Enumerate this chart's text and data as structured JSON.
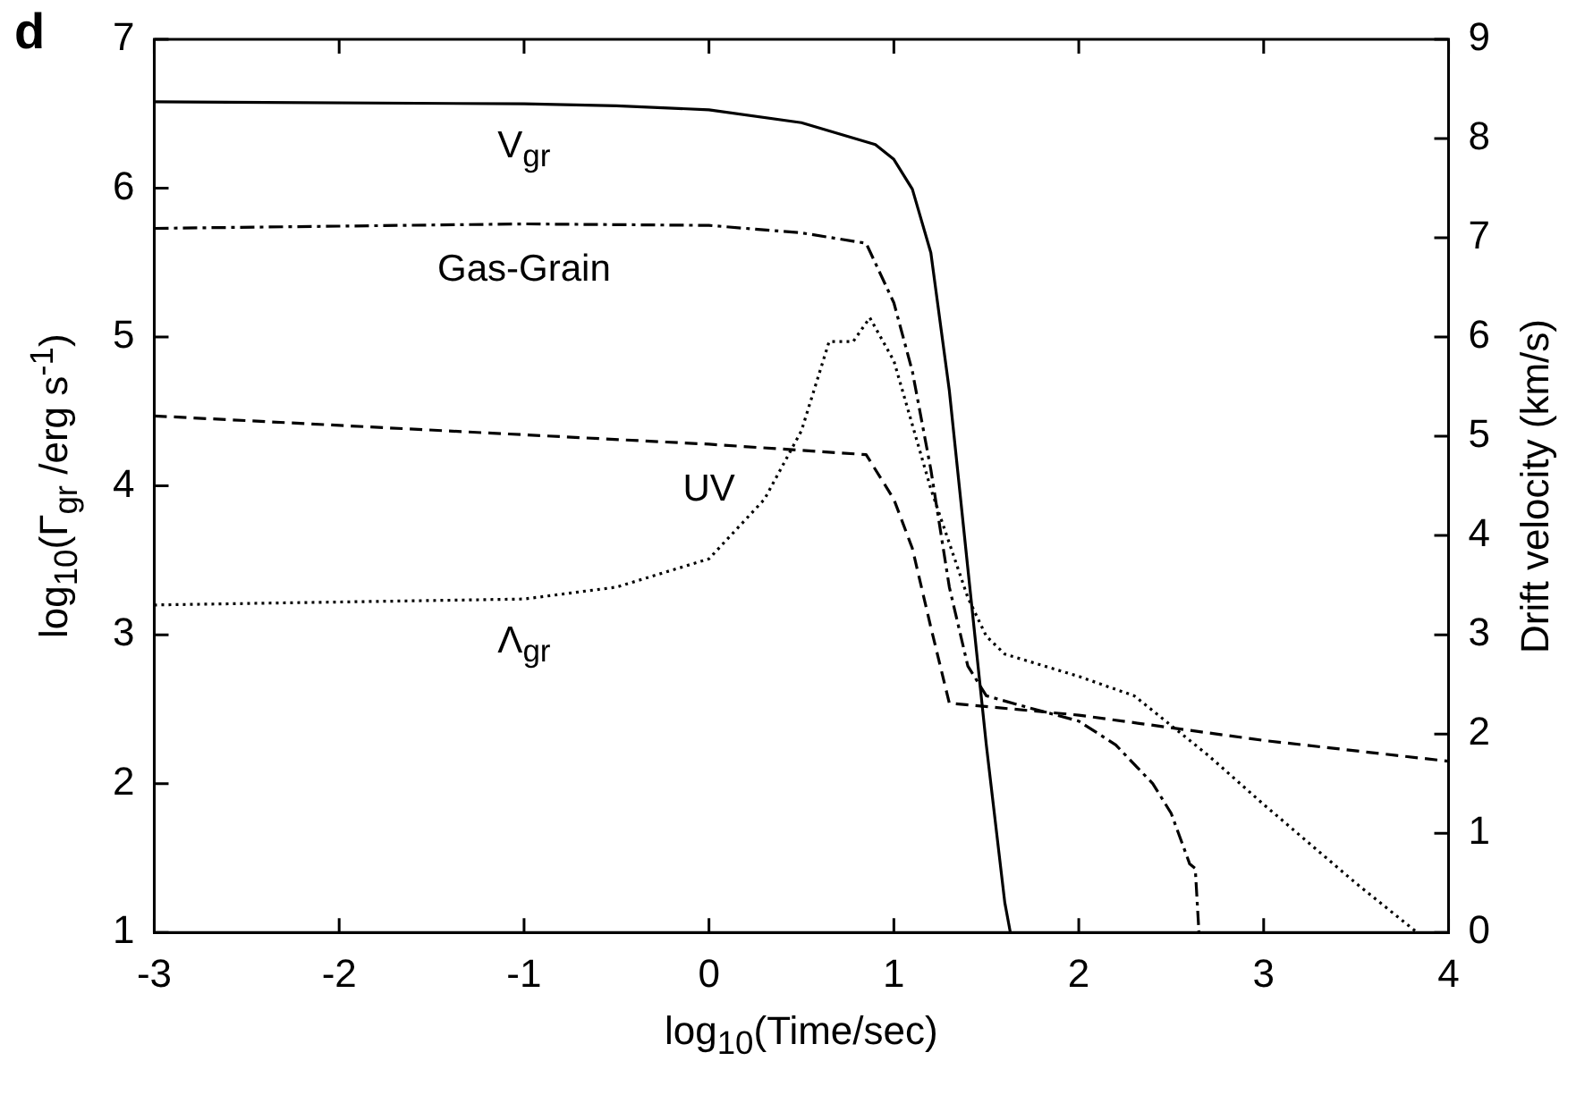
{
  "chart_data": {
    "type": "line",
    "title": "d",
    "xlabel": "log$_{10}$(Time/sec)",
    "ylabel": "log$_{10}$(Γ$_{gr}$ /erg s$^{-1}$)",
    "y2label": "Drift velocity (km/s)",
    "xlim": [
      -3,
      4
    ],
    "xticks": [
      -3,
      -2,
      -1,
      0,
      1,
      2,
      3,
      4
    ],
    "ylim": [
      1,
      7
    ],
    "yticks": [
      1,
      2,
      3,
      4,
      5,
      6,
      7
    ],
    "y2lim": [
      0,
      9
    ],
    "y2ticks": [
      0,
      1,
      2,
      3,
      4,
      5,
      6,
      7,
      8,
      9
    ],
    "grid": false,
    "legend": false,
    "marker": "none",
    "series": [
      {
        "name": "V$_{gr}$",
        "axis": "y2",
        "color": "#000000",
        "line_style": "solid",
        "x": [
          -3,
          -1,
          -0.5,
          0,
          0.5,
          0.9,
          1.0,
          1.1,
          1.2,
          1.3,
          1.4,
          1.5,
          1.6,
          1.63
        ],
        "values": [
          8.37,
          8.35,
          8.33,
          8.29,
          8.16,
          7.94,
          7.79,
          7.49,
          6.85,
          5.46,
          3.67,
          1.89,
          0.3,
          0
        ]
      },
      {
        "name": "Gas-Grain",
        "color": "#000000",
        "line_style": "dashdot",
        "x": [
          -3,
          -1,
          0,
          0.5,
          0.85,
          1.0,
          1.1,
          1.2,
          1.3,
          1.4,
          1.5,
          1.7,
          2.0,
          2.2,
          2.4,
          2.5,
          2.6,
          2.63,
          2.65
        ],
        "values": [
          5.73,
          5.76,
          5.75,
          5.7,
          5.63,
          5.23,
          4.77,
          4.11,
          3.32,
          2.79,
          2.59,
          2.52,
          2.42,
          2.26,
          2.0,
          1.8,
          1.46,
          1.43,
          1.0
        ]
      },
      {
        "name": "UV",
        "color": "#000000",
        "line_style": "dashed",
        "x": [
          -3,
          0,
          0.85,
          1.0,
          1.1,
          1.2,
          1.3,
          2,
          3,
          4
        ],
        "values": [
          4.47,
          4.28,
          4.21,
          3.91,
          3.58,
          3.05,
          2.54,
          2.46,
          2.29,
          2.15
        ]
      },
      {
        "name": "Λ$_{gr}$",
        "color": "#000000",
        "line_style": "dotted",
        "x": [
          -3,
          -1,
          -0.5,
          0,
          0.3,
          0.5,
          0.65,
          0.78,
          0.87,
          1.0,
          1.2,
          1.4,
          1.5,
          1.6,
          2.0,
          2.3,
          2.5,
          2.7,
          3.0,
          3.5,
          3.83
        ],
        "values": [
          3.2,
          3.24,
          3.32,
          3.51,
          3.91,
          4.37,
          4.97,
          4.97,
          5.13,
          4.84,
          3.98,
          3.25,
          2.99,
          2.87,
          2.72,
          2.59,
          2.39,
          2.19,
          1.86,
          1.33,
          1.0
        ]
      }
    ]
  }
}
